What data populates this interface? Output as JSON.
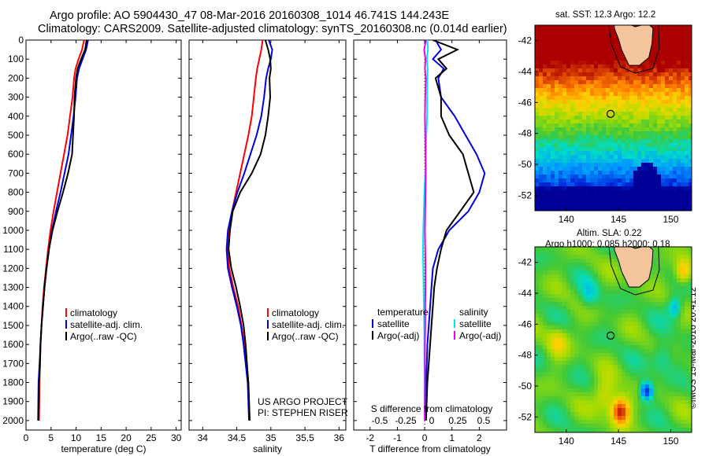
{
  "header": {
    "line1": "Argo profile: AO 5904430_47 08-Mar-2016 20160308_1014 46.741S 144.243E",
    "line2": "Climatology: CARS2009. Satellite-adjusted climatology: synTS_20160308.nc (0.014d earlier)"
  },
  "stamp": "©IMOS 15-Mar-2016 20:41:12",
  "colors": {
    "climatology": "#ff0000",
    "satellite": "#0000dd",
    "argo": "#000000",
    "salinity_sat": "#00e5ee",
    "salinity_argo": "#ee00ee"
  },
  "chart_data": [
    {
      "type": "line",
      "xlabel": "temperature (deg C)",
      "ylabel": "",
      "xlim": [
        0,
        31
      ],
      "ylim": [
        2050,
        0
      ],
      "y_reversed": true,
      "xticks": [
        0,
        5,
        10,
        15,
        20,
        25,
        30
      ],
      "yticks": [
        0,
        100,
        200,
        300,
        400,
        500,
        600,
        700,
        800,
        900,
        1000,
        1100,
        1200,
        1300,
        1400,
        1500,
        1600,
        1700,
        1800,
        1900,
        2000
      ],
      "legend": [
        "climatology",
        "satellite-adj. clim.",
        "Argo(..raw -QC)"
      ],
      "series": [
        {
          "name": "climatology",
          "color": "#ff0000",
          "x": [
            11.6,
            11.2,
            10.5,
            9.9,
            9.6,
            9.3,
            8.8,
            8.3,
            7.6,
            6.9,
            6.2,
            5.5,
            4.9,
            4.4,
            4.0,
            3.6,
            3.3,
            3.1,
            2.9,
            2.8,
            2.7,
            2.6
          ],
          "y": [
            0,
            50,
            100,
            150,
            200,
            300,
            400,
            500,
            600,
            700,
            800,
            900,
            1000,
            1100,
            1200,
            1300,
            1400,
            1500,
            1600,
            1700,
            1800,
            2000
          ]
        },
        {
          "name": "satellite-adj. clim.",
          "color": "#0000dd",
          "x": [
            12.4,
            12.0,
            11.3,
            10.6,
            10.2,
            9.9,
            9.5,
            9.0,
            8.5,
            7.7,
            6.9,
            6.0,
            5.2,
            4.6,
            4.1,
            3.7,
            3.4,
            3.1,
            2.9,
            2.7,
            2.5,
            2.4
          ],
          "y": [
            0,
            50,
            100,
            150,
            200,
            300,
            400,
            500,
            600,
            700,
            800,
            900,
            1000,
            1100,
            1200,
            1300,
            1400,
            1500,
            1600,
            1700,
            1800,
            2000
          ]
        },
        {
          "name": "Argo(..raw -QC)",
          "color": "#000000",
          "x": [
            12.1,
            11.8,
            11.0,
            10.3,
            10.0,
            9.7,
            9.6,
            9.4,
            9.2,
            8.4,
            7.4,
            6.3,
            5.3,
            4.6,
            4.1,
            3.7,
            3.4,
            3.1,
            2.9,
            2.8,
            2.6,
            2.5
          ],
          "y": [
            0,
            50,
            100,
            150,
            200,
            300,
            400,
            500,
            600,
            700,
            800,
            900,
            1000,
            1100,
            1200,
            1300,
            1400,
            1500,
            1600,
            1700,
            1800,
            2000
          ]
        }
      ]
    },
    {
      "type": "line",
      "xlabel": "salinity",
      "ylabel": "",
      "xlim": [
        33.8,
        36.1
      ],
      "ylim": [
        2050,
        0
      ],
      "y_reversed": true,
      "xticks": [
        34,
        34.5,
        35,
        35.5,
        36
      ],
      "xtick_labels": [
        "34",
        "34.5",
        "35",
        "35.5",
        "36"
      ],
      "legend": [
        "climatology",
        "satellite-adj. clim.",
        "Argo(..raw -QC)"
      ],
      "annotations": [
        "US ARGO PROJECT",
        "PI: STEPHEN RISER"
      ],
      "series": [
        {
          "name": "climatology",
          "color": "#ff0000",
          "x": [
            34.88,
            34.86,
            34.83,
            34.8,
            34.78,
            34.75,
            34.72,
            34.67,
            34.61,
            34.55,
            34.49,
            34.43,
            34.39,
            34.37,
            34.39,
            34.45,
            34.52,
            34.57,
            34.61,
            34.64,
            34.67,
            34.69
          ],
          "y": [
            0,
            50,
            100,
            150,
            200,
            300,
            400,
            500,
            600,
            700,
            800,
            900,
            1000,
            1100,
            1200,
            1300,
            1400,
            1500,
            1600,
            1700,
            1800,
            2000
          ]
        },
        {
          "name": "satellite-adj. clim.",
          "color": "#0000dd",
          "x": [
            34.97,
            35.02,
            35.0,
            34.96,
            34.93,
            34.9,
            34.86,
            34.79,
            34.7,
            34.61,
            34.51,
            34.43,
            34.37,
            34.35,
            34.37,
            34.43,
            34.5,
            34.56,
            34.6,
            34.63,
            34.66,
            34.68
          ],
          "y": [
            0,
            50,
            100,
            150,
            200,
            300,
            400,
            500,
            600,
            700,
            800,
            900,
            1000,
            1100,
            1200,
            1300,
            1400,
            1500,
            1600,
            1700,
            1800,
            2000
          ]
        },
        {
          "name": "Argo(..raw -QC)",
          "color": "#000000",
          "x": [
            34.92,
            34.96,
            34.99,
            35.0,
            34.98,
            34.99,
            34.96,
            34.92,
            34.85,
            34.72,
            34.55,
            34.44,
            34.4,
            34.38,
            34.42,
            34.49,
            34.55,
            34.6,
            34.63,
            34.65,
            34.67,
            34.69
          ],
          "y": [
            0,
            50,
            100,
            150,
            200,
            300,
            400,
            500,
            600,
            700,
            800,
            900,
            1000,
            1100,
            1200,
            1300,
            1400,
            1500,
            1600,
            1700,
            1800,
            2000
          ]
        }
      ]
    },
    {
      "type": "line",
      "xlabel": "T difference from climatology",
      "xlabel_top": "S difference from climatology",
      "ylabel": "",
      "xlim": [
        -2.6,
        3.0
      ],
      "ylim": [
        2050,
        0
      ],
      "y_reversed": true,
      "xticks": [
        -2,
        -1,
        0,
        1,
        2
      ],
      "xtick_labels": [
        "-2",
        "-1",
        "0",
        "1",
        "2"
      ],
      "xticks_top": [
        -0.5,
        -0.25,
        0,
        0.25,
        0.5
      ],
      "xtick_labels_top": [
        "-0.5",
        "-0.25",
        "0",
        "0.25",
        "0.5"
      ],
      "legend": {
        "temperature": {
          "heading": "temperature",
          "items": [
            "satellite",
            "Argo(-adj)"
          ]
        },
        "salinity": {
          "heading": "salinity",
          "items": [
            "satellite",
            "Argo(-adj)"
          ]
        }
      },
      "series": [
        {
          "name": "temperature satellite",
          "color": "#0000dd",
          "x": [
            0.4,
            0.6,
            0.3,
            0.7,
            0.5,
            0.6,
            1.1,
            1.5,
            1.9,
            2.2,
            2.0,
            1.6,
            0.9,
            0.5,
            0.3,
            0.25,
            0.2,
            0.15,
            0.1,
            0.08,
            0.05,
            0.03
          ],
          "y": [
            0,
            50,
            100,
            150,
            200,
            300,
            400,
            500,
            600,
            700,
            800,
            900,
            1000,
            1100,
            1200,
            1300,
            1400,
            1500,
            1600,
            1700,
            1800,
            2000
          ]
        },
        {
          "name": "temperature Argo(-adj)",
          "color": "#000000",
          "x": [
            0.3,
            1.2,
            0.5,
            0.8,
            0.4,
            0.6,
            0.6,
            0.9,
            1.4,
            1.6,
            1.8,
            1.3,
            0.8,
            0.6,
            0.45,
            0.35,
            0.3,
            0.25,
            0.2,
            0.15,
            0.1,
            0.05
          ],
          "y": [
            0,
            50,
            100,
            150,
            200,
            300,
            400,
            500,
            600,
            700,
            800,
            900,
            1000,
            1100,
            1200,
            1300,
            1400,
            1500,
            1600,
            1700,
            1800,
            2000
          ]
        },
        {
          "name": "salinity satellite",
          "color": "#00e5ee",
          "x": [
            0.1,
            0.12,
            0.08,
            0.11,
            0.1,
            0.09,
            0.09,
            0.06,
            0.04,
            0.02,
            -0.01,
            -0.03,
            -0.05,
            -0.06,
            -0.05,
            -0.04,
            -0.03,
            -0.02,
            -0.01,
            -0.01,
            0.0,
            0.0
          ],
          "y": [
            0,
            50,
            100,
            150,
            200,
            300,
            400,
            500,
            600,
            700,
            800,
            900,
            1000,
            1100,
            1200,
            1300,
            1400,
            1500,
            1600,
            1700,
            1800,
            2000
          ]
        },
        {
          "name": "salinity Argo(-adj)",
          "color": "#ee00ee",
          "x": [
            0.05,
            -0.02,
            0.03,
            0.01,
            0.04,
            0.02,
            0.01,
            0.02,
            0.03,
            0.04,
            0.03,
            0.02,
            0.01,
            0.02,
            0.03,
            0.03,
            0.02,
            0.02,
            0.01,
            0.01,
            0.01,
            0.0
          ],
          "y": [
            0,
            50,
            100,
            150,
            200,
            300,
            400,
            500,
            600,
            700,
            800,
            900,
            1000,
            1100,
            1200,
            1300,
            1400,
            1500,
            1600,
            1700,
            1800,
            2000
          ]
        }
      ]
    },
    {
      "type": "heatmap",
      "title": "sat. SST: 12.3  Argo: 12.2",
      "xlim": [
        137,
        152
      ],
      "ylim": [
        -53,
        -41
      ],
      "xticks": [
        140,
        145,
        150
      ],
      "yticks": [
        -42,
        -44,
        -46,
        -48,
        -50,
        -52
      ],
      "profile_location": {
        "lon": 144.243,
        "lat": -46.741
      }
    },
    {
      "type": "heatmap",
      "title": "Altim. SLA: 0.22",
      "subtitle": "Argo h1000: 0.085 h2000: 0.18",
      "xlim": [
        137,
        152
      ],
      "ylim": [
        -53,
        -41
      ],
      "xticks": [
        140,
        145,
        150
      ],
      "yticks": [
        -42,
        -44,
        -46,
        -48,
        -50,
        -52
      ],
      "profile_location": {
        "lon": 144.243,
        "lat": -46.741
      }
    }
  ]
}
